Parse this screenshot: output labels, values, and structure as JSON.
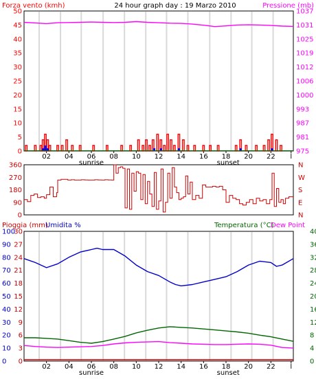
{
  "colors": {
    "wind": "#ff0000",
    "pressure": "#ff00ff",
    "direction": "#cc0000",
    "rain": "#cc0000",
    "humidity": "#0000cc",
    "temperature": "#006600",
    "dew_point": "#ff00ff",
    "light_blue": "#0000ff",
    "grid": "#d9d9d9",
    "frame": "#000000"
  },
  "chart_data": [
    {
      "type": "bar",
      "title": "24 hour graph day : 19 Marzo 2010",
      "left_label": "Forza vento (kmh)",
      "right_label": "Pressione (mb)",
      "x_ticks": [
        "02",
        "04",
        "06",
        "08",
        "10",
        "12",
        "14",
        "16",
        "18",
        "20",
        "22",
        "l"
      ],
      "x_sub_labels": {
        "sunrise": "sunrise",
        "sunset": "sunset"
      },
      "left_ticks": [
        "50",
        "45",
        "40",
        "35",
        "30",
        "25",
        "20",
        "15",
        "10",
        "5",
        "0"
      ],
      "right_ticks": [
        "1037",
        "1031",
        "1025",
        "1019",
        "1012",
        "1006",
        "1000",
        "993",
        "987",
        "981",
        "975"
      ],
      "ylim_left": [
        0,
        50
      ],
      "ylim_right": [
        975,
        1037
      ],
      "xlim": [
        0,
        24
      ],
      "series": [
        {
          "name": "Forza vento",
          "kind": "bars",
          "x": [
            0.2,
            1.0,
            1.5,
            1.7,
            1.9,
            2.1,
            2.3,
            3.0,
            3.4,
            3.8,
            4.3,
            5.0,
            6.2,
            7.4,
            8.7,
            9.5,
            10.2,
            10.6,
            10.9,
            11.2,
            11.5,
            11.9,
            12.2,
            12.5,
            12.8,
            13.1,
            13.4,
            13.8,
            14.2,
            14.6,
            15.2,
            16.0,
            16.6,
            17.3,
            18.9,
            19.3,
            19.8,
            20.7,
            21.4,
            21.8,
            22.1,
            22.5,
            22.9
          ],
          "values": [
            2,
            2,
            2,
            4,
            6,
            4,
            2,
            2,
            2,
            4,
            2,
            2,
            2,
            2,
            2,
            2,
            4,
            2,
            4,
            2,
            4,
            6,
            4,
            2,
            6,
            4,
            2,
            6,
            4,
            2,
            2,
            2,
            2,
            2,
            2,
            4,
            2,
            2,
            2,
            4,
            6,
            4,
            2
          ]
        },
        {
          "name": "Raffica",
          "kind": "bars",
          "x": [
            1.7,
            1.9,
            2.1,
            11.6,
            12.2,
            13.8,
            19.3,
            22.1
          ],
          "values": [
            1,
            2,
            1,
            1,
            1,
            1,
            1,
            1
          ]
        },
        {
          "name": "Pressione",
          "kind": "line",
          "x": [
            0,
            1,
            2,
            3,
            4,
            5,
            6,
            7,
            8,
            9,
            10,
            11,
            12,
            13,
            14,
            15,
            16,
            17,
            18,
            19,
            20,
            21,
            22,
            23,
            24
          ],
          "values": [
            1032.0,
            1031.7,
            1031.4,
            1031.8,
            1031.9,
            1032.0,
            1032.1,
            1032.0,
            1031.9,
            1032.0,
            1032.3,
            1032.0,
            1031.8,
            1031.6,
            1031.5,
            1031.2,
            1030.7,
            1030.1,
            1030.4,
            1030.8,
            1030.9,
            1030.8,
            1030.6,
            1030.3,
            1030.2
          ]
        },
        {
          "name": "Baseline",
          "kind": "line",
          "x": [
            0,
            24
          ],
          "values": [
            0.1,
            0.1
          ]
        }
      ]
    },
    {
      "type": "line",
      "title": "",
      "left_ticks": [
        "360",
        "270",
        "180",
        "90",
        "0"
      ],
      "right_ticks": [
        "N",
        "W",
        "S",
        "E",
        "N"
      ],
      "ylim": [
        0,
        360
      ],
      "xlim": [
        0,
        24
      ],
      "series": [
        {
          "name": "Direzione",
          "x": [
            0.0,
            0.3,
            0.6,
            0.9,
            1.2,
            1.5,
            1.8,
            2.0,
            2.3,
            2.6,
            2.9,
            3.0,
            3.3,
            3.6,
            3.9,
            4.2,
            4.5,
            4.8,
            5.1,
            5.4,
            5.7,
            6.0,
            6.3,
            6.6,
            6.9,
            7.2,
            7.5,
            7.8,
            8.0,
            8.2,
            8.4,
            8.6,
            8.8,
            9.0,
            9.2,
            9.4,
            9.6,
            9.8,
            10.0,
            10.2,
            10.4,
            10.6,
            10.8,
            11.0,
            11.2,
            11.4,
            11.6,
            11.8,
            12.0,
            12.2,
            12.4,
            12.6,
            12.8,
            13.0,
            13.2,
            13.4,
            13.6,
            13.8,
            14.0,
            14.2,
            14.4,
            14.6,
            14.8,
            15.0,
            15.3,
            15.6,
            15.9,
            16.2,
            16.5,
            16.8,
            17.1,
            17.4,
            17.7,
            18.0,
            18.3,
            18.6,
            18.9,
            19.2,
            19.5,
            19.8,
            20.1,
            20.4,
            20.7,
            21.0,
            21.3,
            21.6,
            21.9,
            22.1,
            22.3,
            22.5,
            22.7,
            22.9,
            23.1,
            23.3,
            23.6,
            24.0
          ],
          "values": [
            110,
            95,
            140,
            150,
            125,
            130,
            120,
            145,
            200,
            130,
            160,
            250,
            255,
            255,
            250,
            252,
            250,
            250,
            252,
            251,
            250,
            250,
            252,
            251,
            250,
            252,
            251,
            250,
            360,
            300,
            340,
            345,
            335,
            50,
            330,
            40,
            300,
            170,
            310,
            300,
            110,
            290,
            80,
            240,
            150,
            60,
            305,
            40,
            100,
            330,
            20,
            90,
            300,
            120,
            340,
            200,
            160,
            110,
            120,
            130,
            280,
            150,
            235,
            110,
            140,
            120,
            215,
            200,
            200,
            205,
            200,
            205,
            180,
            90,
            140,
            120,
            110,
            80,
            70,
            90,
            110,
            80,
            120,
            100,
            110,
            80,
            110,
            300,
            60,
            190,
            90,
            110,
            80,
            120,
            130,
            130
          ]
        }
      ]
    },
    {
      "type": "line",
      "left_label": "Pioggia (mm)",
      "left_label_2": "Umidita %",
      "right_label": "Temperatura (°C)",
      "right_label_2": "Dew Point",
      "x_ticks": [
        "02",
        "04",
        "06",
        "08",
        "10",
        "12",
        "14",
        "16",
        "18",
        "20",
        "22",
        "l"
      ],
      "x_sub_labels": {
        "sunrise": "sunrise",
        "sunset": "sunset"
      },
      "humidity_ticks": [
        "100",
        "90",
        "80",
        "70",
        "60",
        "50",
        "40",
        "30",
        "20",
        "10",
        "0"
      ],
      "rain_ticks": [
        "30",
        "27",
        "24",
        "21",
        "18",
        "15",
        "12",
        "9",
        "6",
        "3",
        "0"
      ],
      "temp_ticks": [
        "40",
        "36",
        "32",
        "28",
        "24",
        "20",
        "16",
        "12",
        "8",
        "4",
        "0"
      ],
      "ylim_humidity": [
        0,
        100
      ],
      "ylim_temperature": [
        0,
        40
      ],
      "xlim": [
        0,
        24
      ],
      "series": [
        {
          "name": "Umidita %",
          "axis": "humidity",
          "x": [
            0,
            1,
            2,
            3,
            4,
            5,
            6,
            6.5,
            7,
            8,
            9,
            10,
            11,
            12,
            13,
            13.5,
            14,
            15,
            16,
            17,
            18,
            19,
            20,
            21,
            22,
            22.5,
            23,
            24
          ],
          "values": [
            79,
            76,
            72,
            75,
            80,
            84,
            86,
            87,
            86,
            86,
            81,
            74,
            69,
            66,
            61,
            59,
            58,
            59,
            61,
            63,
            65,
            69,
            74,
            77,
            76,
            73,
            74,
            79
          ]
        },
        {
          "name": "Temperatura",
          "axis": "temperature",
          "x": [
            0,
            1,
            2,
            3,
            4,
            5,
            6,
            7,
            8,
            9,
            10,
            11,
            12,
            13,
            14,
            15,
            16,
            17,
            18,
            19,
            20,
            21,
            22,
            23,
            24
          ],
          "values": [
            7.2,
            7.2,
            7.0,
            6.8,
            6.3,
            5.8,
            5.5,
            6.0,
            6.8,
            7.6,
            8.7,
            9.5,
            10.2,
            10.6,
            10.4,
            10.2,
            9.9,
            9.6,
            9.3,
            9.0,
            8.6,
            8.0,
            7.5,
            6.8,
            6.1
          ]
        },
        {
          "name": "Dew Point",
          "axis": "temperature",
          "x": [
            0,
            1,
            2,
            3,
            4,
            5,
            6,
            7,
            8,
            9,
            10,
            11,
            12,
            13,
            14,
            15,
            16,
            17,
            18,
            19,
            20,
            21,
            22,
            23,
            24
          ],
          "values": [
            4.8,
            4.5,
            4.3,
            4.2,
            4.3,
            4.4,
            4.5,
            4.8,
            5.3,
            5.6,
            5.8,
            5.9,
            6.0,
            5.7,
            5.5,
            5.3,
            5.2,
            5.1,
            5.1,
            5.2,
            5.3,
            5.2,
            4.9,
            4.2,
            4.0
          ]
        },
        {
          "name": "Pioggia",
          "axis": "rain",
          "x": [
            0,
            24
          ],
          "values": [
            0,
            0
          ]
        }
      ]
    }
  ]
}
